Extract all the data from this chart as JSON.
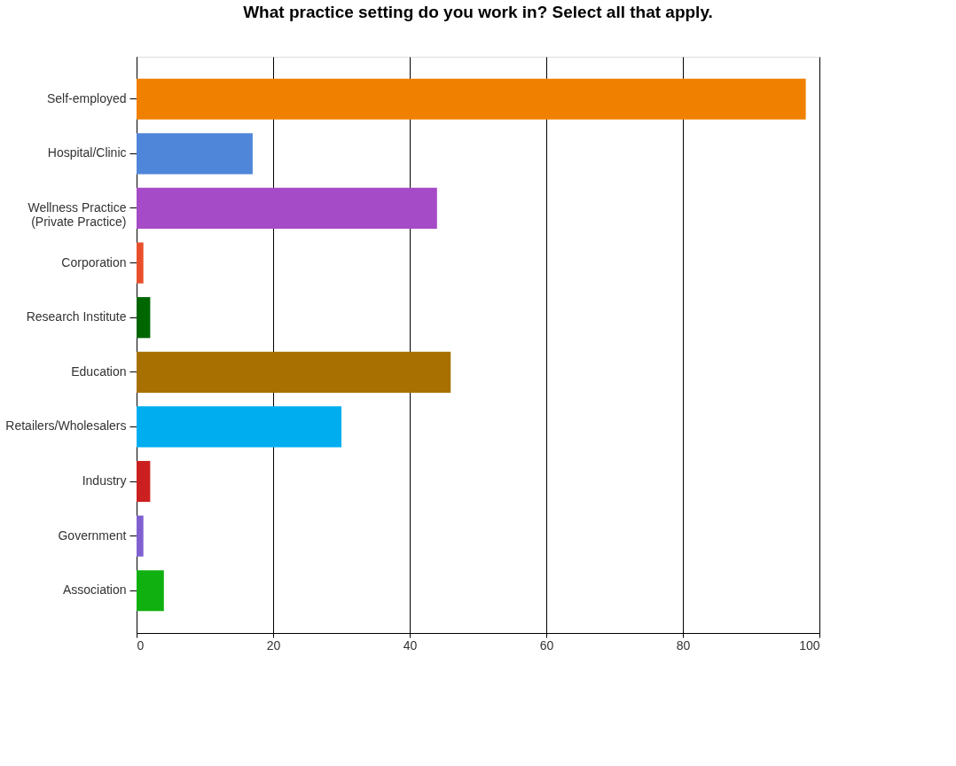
{
  "chart_data": {
    "type": "bar",
    "orientation": "horizontal",
    "title": "What practice setting do you work in? Select all that apply.",
    "categories": [
      "Self-employed",
      "Hospital/Clinic",
      "Wellness Practice\n(Private Practice)",
      "Corporation",
      "Research Institute",
      "Education",
      "Retailers/Wholesalers",
      "Industry",
      "Government",
      "Association"
    ],
    "values": [
      98,
      17,
      44,
      1,
      2,
      46,
      30,
      2,
      1,
      4
    ],
    "colors": [
      "#f08000",
      "#4f86d9",
      "#a64bc8",
      "#e8502c",
      "#006600",
      "#a87000",
      "#00aef0",
      "#cc2020",
      "#8060d0",
      "#10b010"
    ],
    "xlim": [
      0,
      100
    ],
    "xticks": [
      0,
      20,
      40,
      60,
      80,
      100
    ],
    "grid": "x"
  }
}
